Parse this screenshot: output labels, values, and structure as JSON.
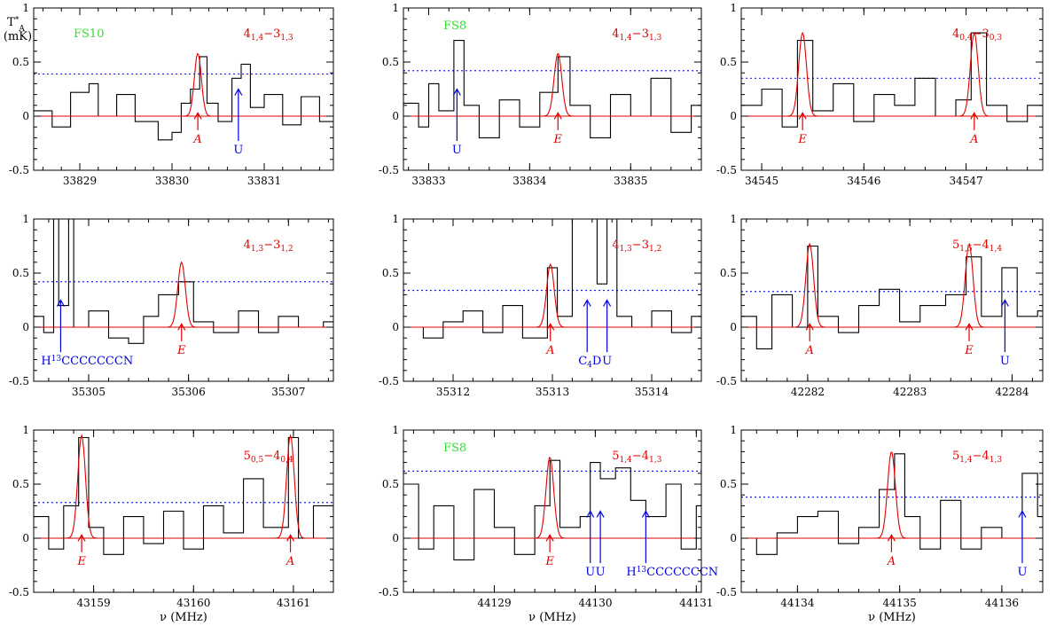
{
  "colors": {
    "spectrum": "#000000",
    "fit": "#e00000",
    "threshold": "#2020ff",
    "unidentified": "#0000e0",
    "fold_label": "#33dd33"
  },
  "figure": {
    "ylabel_top": "T*A",
    "ylabel_unit": "(mK)",
    "xlabel": "ν (MHz)"
  },
  "chart_data": [
    {
      "type": "line",
      "row": 0,
      "col": 0,
      "xlim": [
        33828.5,
        33831.75
      ],
      "ylim": [
        -0.5,
        1
      ],
      "xticks": [
        33829,
        33830,
        33831
      ],
      "yticks": [
        -0.5,
        0,
        0.5,
        1
      ],
      "transition": "4_{1,4}−3_{1,3}",
      "fold": "FS10",
      "threshold": 0.39,
      "fit_lines": [
        {
          "center": 33830.28,
          "amp": 0.58,
          "fwhm": 0.09
        }
      ],
      "markers": [
        {
          "x": 33830.28,
          "label": "A",
          "color": "red"
        },
        {
          "x": 33830.72,
          "label": "U",
          "color": "blue"
        }
      ],
      "spectrum": [
        [
          33828.5,
          0.05
        ],
        [
          33828.7,
          -0.1
        ],
        [
          33828.9,
          0.22
        ],
        [
          33829.1,
          0.3
        ],
        [
          33829.2,
          0.0
        ],
        [
          33829.4,
          0.2
        ],
        [
          33829.6,
          -0.05
        ],
        [
          33829.85,
          -0.22
        ],
        [
          33830.0,
          -0.15
        ],
        [
          33830.1,
          0.12
        ],
        [
          33830.2,
          0.25
        ],
        [
          33830.3,
          0.55
        ],
        [
          33830.38,
          0.12
        ],
        [
          33830.5,
          -0.05
        ],
        [
          33830.65,
          0.35
        ],
        [
          33830.75,
          0.48
        ],
        [
          33830.85,
          0.08
        ],
        [
          33831.0,
          0.2
        ],
        [
          33831.2,
          -0.08
        ],
        [
          33831.4,
          0.18
        ],
        [
          33831.6,
          -0.05
        ]
      ]
    },
    {
      "type": "line",
      "row": 0,
      "col": 1,
      "xlim": [
        33832.75,
        33835.7
      ],
      "ylim": [
        -0.5,
        1
      ],
      "xticks": [
        33833,
        33834,
        33835
      ],
      "yticks": [
        -0.5,
        0,
        0.5,
        1
      ],
      "transition": "4_{1,4}−3_{1,3}",
      "fold": "FS8",
      "threshold": 0.42,
      "fit_lines": [
        {
          "center": 33834.28,
          "amp": 0.58,
          "fwhm": 0.09
        }
      ],
      "markers": [
        {
          "x": 33834.28,
          "label": "E",
          "color": "red"
        },
        {
          "x": 33833.28,
          "label": "U",
          "color": "blue"
        }
      ],
      "spectrum": [
        [
          33832.75,
          0.12
        ],
        [
          33832.9,
          -0.1
        ],
        [
          33833.0,
          0.3
        ],
        [
          33833.1,
          0.05
        ],
        [
          33833.25,
          0.7
        ],
        [
          33833.35,
          0.1
        ],
        [
          33833.5,
          -0.2
        ],
        [
          33833.7,
          0.15
        ],
        [
          33833.9,
          -0.1
        ],
        [
          33834.1,
          0.22
        ],
        [
          33834.28,
          0.55
        ],
        [
          33834.4,
          0.1
        ],
        [
          33834.6,
          -0.2
        ],
        [
          33834.8,
          0.2
        ],
        [
          33835.0,
          0.0
        ],
        [
          33835.2,
          0.35
        ],
        [
          33835.4,
          -0.15
        ],
        [
          33835.6,
          0.1
        ]
      ]
    },
    {
      "type": "line",
      "row": 0,
      "col": 2,
      "xlim": [
        34544.8,
        34547.75
      ],
      "ylim": [
        -0.5,
        1
      ],
      "xticks": [
        34545,
        34546,
        34547
      ],
      "yticks": [
        -0.5,
        0,
        0.5,
        1
      ],
      "transition": "4_{0,4}−3_{0,3}",
      "fold": "",
      "threshold": 0.35,
      "fit_lines": [
        {
          "center": 34545.4,
          "amp": 0.77,
          "fwhm": 0.09
        },
        {
          "center": 34547.08,
          "amp": 0.77,
          "fwhm": 0.09
        }
      ],
      "markers": [
        {
          "x": 34545.4,
          "label": "E",
          "color": "red"
        },
        {
          "x": 34547.08,
          "label": "A",
          "color": "red"
        }
      ],
      "spectrum": [
        [
          34544.8,
          0.1
        ],
        [
          34545.0,
          0.25
        ],
        [
          34545.2,
          -0.1
        ],
        [
          34545.35,
          0.7
        ],
        [
          34545.5,
          0.05
        ],
        [
          34545.7,
          0.3
        ],
        [
          34545.9,
          -0.05
        ],
        [
          34546.1,
          0.2
        ],
        [
          34546.3,
          0.1
        ],
        [
          34546.5,
          0.35
        ],
        [
          34546.7,
          0.0
        ],
        [
          34546.9,
          0.15
        ],
        [
          34547.05,
          0.77
        ],
        [
          34547.2,
          0.1
        ],
        [
          34547.4,
          -0.05
        ],
        [
          34547.6,
          0.1
        ]
      ]
    },
    {
      "type": "line",
      "row": 1,
      "col": 0,
      "xlim": [
        35304.45,
        35307.45
      ],
      "ylim": [
        -0.5,
        1
      ],
      "xticks": [
        35305,
        35306,
        35307
      ],
      "yticks": [
        -0.5,
        0,
        0.5,
        1
      ],
      "transition": "4_{1,3}−3_{1,2}",
      "fold": "",
      "threshold": 0.42,
      "fit_lines": [
        {
          "center": 35305.93,
          "amp": 0.6,
          "fwhm": 0.09
        }
      ],
      "markers": [
        {
          "x": 35305.93,
          "label": "E",
          "color": "red"
        },
        {
          "x": 35304.72,
          "label": "H13CCCCCCCN",
          "color": "blue"
        }
      ],
      "spectrum": [
        [
          35304.45,
          0.1
        ],
        [
          35304.55,
          -0.05
        ],
        [
          35304.65,
          1.0
        ],
        [
          35304.7,
          0.2
        ],
        [
          35304.8,
          1.0
        ],
        [
          35304.85,
          0.0
        ],
        [
          35305.0,
          0.15
        ],
        [
          35305.2,
          -0.1
        ],
        [
          35305.4,
          -0.15
        ],
        [
          35305.55,
          0.1
        ],
        [
          35305.7,
          0.3
        ],
        [
          35305.9,
          0.42
        ],
        [
          35306.05,
          0.05
        ],
        [
          35306.25,
          -0.05
        ],
        [
          35306.5,
          0.15
        ],
        [
          35306.7,
          -0.05
        ],
        [
          35306.9,
          0.1
        ],
        [
          35307.1,
          0.0
        ],
        [
          35307.35,
          0.05
        ]
      ]
    },
    {
      "type": "line",
      "row": 1,
      "col": 1,
      "xlim": [
        35311.5,
        35314.5
      ],
      "ylim": [
        -0.5,
        1
      ],
      "xticks": [
        35312,
        35313,
        35314
      ],
      "yticks": [
        -0.5,
        0,
        0.5,
        1
      ],
      "transition": "4_{1,3}−3_{1,2}",
      "fold": "",
      "threshold": 0.34,
      "fit_lines": [
        {
          "center": 35312.98,
          "amp": 0.58,
          "fwhm": 0.09
        }
      ],
      "markers": [
        {
          "x": 35312.98,
          "label": "A",
          "color": "red"
        },
        {
          "x": 35313.35,
          "label": "C4D",
          "color": "blue"
        },
        {
          "x": 35313.55,
          "label": "U",
          "color": "blue"
        }
      ],
      "spectrum": [
        [
          35311.5,
          0.0
        ],
        [
          35311.7,
          -0.1
        ],
        [
          35311.9,
          0.05
        ],
        [
          35312.1,
          0.15
        ],
        [
          35312.3,
          -0.05
        ],
        [
          35312.5,
          0.2
        ],
        [
          35312.7,
          -0.1
        ],
        [
          35312.95,
          0.55
        ],
        [
          35313.05,
          0.1
        ],
        [
          35313.2,
          1.0
        ],
        [
          35313.45,
          0.4
        ],
        [
          35313.55,
          1.0
        ],
        [
          35313.65,
          0.1
        ],
        [
          35313.8,
          0.0
        ],
        [
          35314.0,
          0.15
        ],
        [
          35314.2,
          -0.05
        ],
        [
          35314.4,
          0.1
        ]
      ]
    },
    {
      "type": "line",
      "row": 1,
      "col": 2,
      "xlim": [
        42281.35,
        42284.3
      ],
      "ylim": [
        -0.5,
        1
      ],
      "xticks": [
        42282,
        42283,
        42284
      ],
      "yticks": [
        -0.5,
        0,
        0.5,
        1
      ],
      "transition": "5_{1,5}−4_{1,4}",
      "fold": "",
      "threshold": 0.33,
      "fit_lines": [
        {
          "center": 42282.02,
          "amp": 0.77,
          "fwhm": 0.09
        },
        {
          "center": 42283.58,
          "amp": 0.77,
          "fwhm": 0.09
        }
      ],
      "markers": [
        {
          "x": 42282.02,
          "label": "A",
          "color": "red"
        },
        {
          "x": 42283.58,
          "label": "E",
          "color": "red"
        },
        {
          "x": 42283.93,
          "label": "U",
          "color": "blue"
        }
      ],
      "spectrum": [
        [
          42281.35,
          0.1
        ],
        [
          42281.5,
          -0.2
        ],
        [
          42281.65,
          0.3
        ],
        [
          42281.85,
          0.0
        ],
        [
          42282.0,
          0.75
        ],
        [
          42282.1,
          0.1
        ],
        [
          42282.3,
          -0.05
        ],
        [
          42282.5,
          0.2
        ],
        [
          42282.7,
          0.35
        ],
        [
          42282.9,
          0.05
        ],
        [
          42283.1,
          0.2
        ],
        [
          42283.35,
          0.3
        ],
        [
          42283.55,
          0.65
        ],
        [
          42283.7,
          0.1
        ],
        [
          42283.9,
          0.55
        ],
        [
          42284.05,
          0.1
        ],
        [
          42284.25,
          0.15
        ]
      ]
    },
    {
      "type": "line",
      "row": 2,
      "col": 0,
      "xlim": [
        43158.4,
        43161.4
      ],
      "ylim": [
        -0.5,
        1
      ],
      "xticks": [
        43159,
        43160,
        43161
      ],
      "yticks": [
        -0.5,
        0,
        0.5,
        1
      ],
      "transition": "5_{0,5}−4_{0,4}",
      "fold": "",
      "threshold": 0.33,
      "fit_lines": [
        {
          "center": 43158.88,
          "amp": 0.95,
          "fwhm": 0.09
        },
        {
          "center": 43160.97,
          "amp": 0.95,
          "fwhm": 0.09
        }
      ],
      "markers": [
        {
          "x": 43158.88,
          "label": "E",
          "color": "red"
        },
        {
          "x": 43160.97,
          "label": "A",
          "color": "red"
        }
      ],
      "spectrum": [
        [
          43158.4,
          0.2
        ],
        [
          43158.55,
          -0.1
        ],
        [
          43158.7,
          0.3
        ],
        [
          43158.85,
          0.93
        ],
        [
          43158.95,
          0.1
        ],
        [
          43159.1,
          -0.15
        ],
        [
          43159.3,
          0.2
        ],
        [
          43159.5,
          -0.05
        ],
        [
          43159.7,
          0.25
        ],
        [
          43159.9,
          -0.1
        ],
        [
          43160.1,
          0.3
        ],
        [
          43160.3,
          0.05
        ],
        [
          43160.5,
          0.55
        ],
        [
          43160.7,
          0.1
        ],
        [
          43160.95,
          0.93
        ],
        [
          43161.05,
          0.0
        ],
        [
          43161.2,
          0.3
        ],
        [
          43161.4,
          0.25
        ]
      ]
    },
    {
      "type": "line",
      "row": 2,
      "col": 1,
      "xlim": [
        44128.1,
        44131.05
      ],
      "ylim": [
        -0.5,
        1
      ],
      "xticks": [
        44129,
        44130,
        44131
      ],
      "yticks": [
        -0.5,
        0,
        0.5,
        1
      ],
      "transition": "5_{1,4}−4_{1,3}",
      "fold": "FS8",
      "threshold": 0.62,
      "fit_lines": [
        {
          "center": 44129.55,
          "amp": 0.75,
          "fwhm": 0.09
        }
      ],
      "markers": [
        {
          "x": 44129.55,
          "label": "E",
          "color": "red"
        },
        {
          "x": 44129.95,
          "label": "U",
          "color": "blue"
        },
        {
          "x": 44130.05,
          "label": "U",
          "color": "blue"
        },
        {
          "x": 44130.5,
          "label": "H13CCCCCCCN",
          "color": "blue"
        }
      ],
      "spectrum": [
        [
          44128.1,
          0.5
        ],
        [
          44128.25,
          -0.1
        ],
        [
          44128.4,
          0.3
        ],
        [
          44128.6,
          -0.2
        ],
        [
          44128.8,
          0.45
        ],
        [
          44129.0,
          0.1
        ],
        [
          44129.2,
          -0.15
        ],
        [
          44129.4,
          0.3
        ],
        [
          44129.55,
          0.72
        ],
        [
          44129.65,
          0.1
        ],
        [
          44129.85,
          0.2
        ],
        [
          44129.95,
          0.7
        ],
        [
          44130.05,
          0.55
        ],
        [
          44130.2,
          0.65
        ],
        [
          44130.35,
          0.35
        ],
        [
          44130.5,
          0.2
        ],
        [
          44130.7,
          0.5
        ],
        [
          44130.85,
          -0.1
        ],
        [
          44131.0,
          0.3
        ]
      ]
    },
    {
      "type": "line",
      "row": 2,
      "col": 2,
      "xlim": [
        44133.45,
        44136.4
      ],
      "ylim": [
        -0.5,
        1
      ],
      "xticks": [
        44134,
        44135,
        44136
      ],
      "yticks": [
        -0.5,
        0,
        0.5,
        1
      ],
      "transition": "5_{1,4}−4_{1,3}",
      "fold": "",
      "threshold": 0.38,
      "fit_lines": [
        {
          "center": 44134.92,
          "amp": 0.8,
          "fwhm": 0.09
        }
      ],
      "markers": [
        {
          "x": 44134.92,
          "label": "A",
          "color": "red"
        },
        {
          "x": 44136.2,
          "label": "U",
          "color": "blue"
        }
      ],
      "spectrum": [
        [
          44133.45,
          0.0
        ],
        [
          44133.6,
          -0.15
        ],
        [
          44133.8,
          0.05
        ],
        [
          44134.0,
          0.2
        ],
        [
          44134.2,
          0.25
        ],
        [
          44134.4,
          -0.05
        ],
        [
          44134.6,
          0.1
        ],
        [
          44134.8,
          0.45
        ],
        [
          44134.95,
          0.78
        ],
        [
          44135.05,
          0.2
        ],
        [
          44135.2,
          -0.1
        ],
        [
          44135.4,
          0.35
        ],
        [
          44135.6,
          -0.1
        ],
        [
          44135.8,
          0.1
        ],
        [
          44136.0,
          0.0
        ],
        [
          44136.2,
          0.6
        ],
        [
          44136.35,
          0.2
        ]
      ]
    }
  ]
}
